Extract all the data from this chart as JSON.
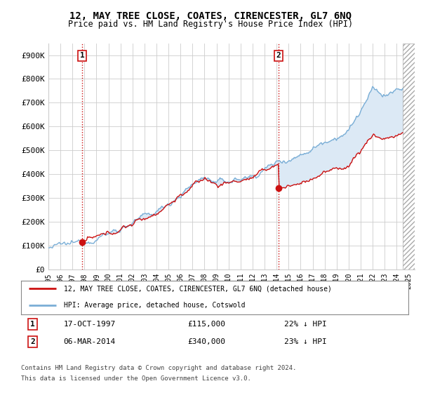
{
  "title": "12, MAY TREE CLOSE, COATES, CIRENCESTER, GL7 6NQ",
  "subtitle": "Price paid vs. HM Land Registry's House Price Index (HPI)",
  "ylim": [
    0,
    950000
  ],
  "yticks": [
    0,
    100000,
    200000,
    300000,
    400000,
    500000,
    600000,
    700000,
    800000,
    900000
  ],
  "ytick_labels": [
    "£0",
    "£100K",
    "£200K",
    "£300K",
    "£400K",
    "£500K",
    "£600K",
    "£700K",
    "£800K",
    "£900K"
  ],
  "hpi_color": "#7aaed6",
  "price_color": "#cc1111",
  "fill_color": "#dce9f5",
  "marker_color": "#cc1111",
  "vline_color": "#cc1111",
  "grid_color": "#cccccc",
  "background_color": "#ffffff",
  "sale1_x": 1997.8,
  "sale1_y": 115000,
  "sale2_x": 2014.17,
  "sale2_y": 340000,
  "data_end_x": 2024.5,
  "xlim_start": 1995.0,
  "xlim_end": 2025.5,
  "legend_line1": "12, MAY TREE CLOSE, COATES, CIRENCESTER, GL7 6NQ (detached house)",
  "legend_line2": "HPI: Average price, detached house, Cotswold",
  "sale1_date": "17-OCT-1997",
  "sale1_price": "£115,000",
  "sale1_note": "22% ↓ HPI",
  "sale2_date": "06-MAR-2014",
  "sale2_price": "£340,000",
  "sale2_note": "23% ↓ HPI",
  "footer1": "Contains HM Land Registry data © Crown copyright and database right 2024.",
  "footer2": "This data is licensed under the Open Government Licence v3.0."
}
